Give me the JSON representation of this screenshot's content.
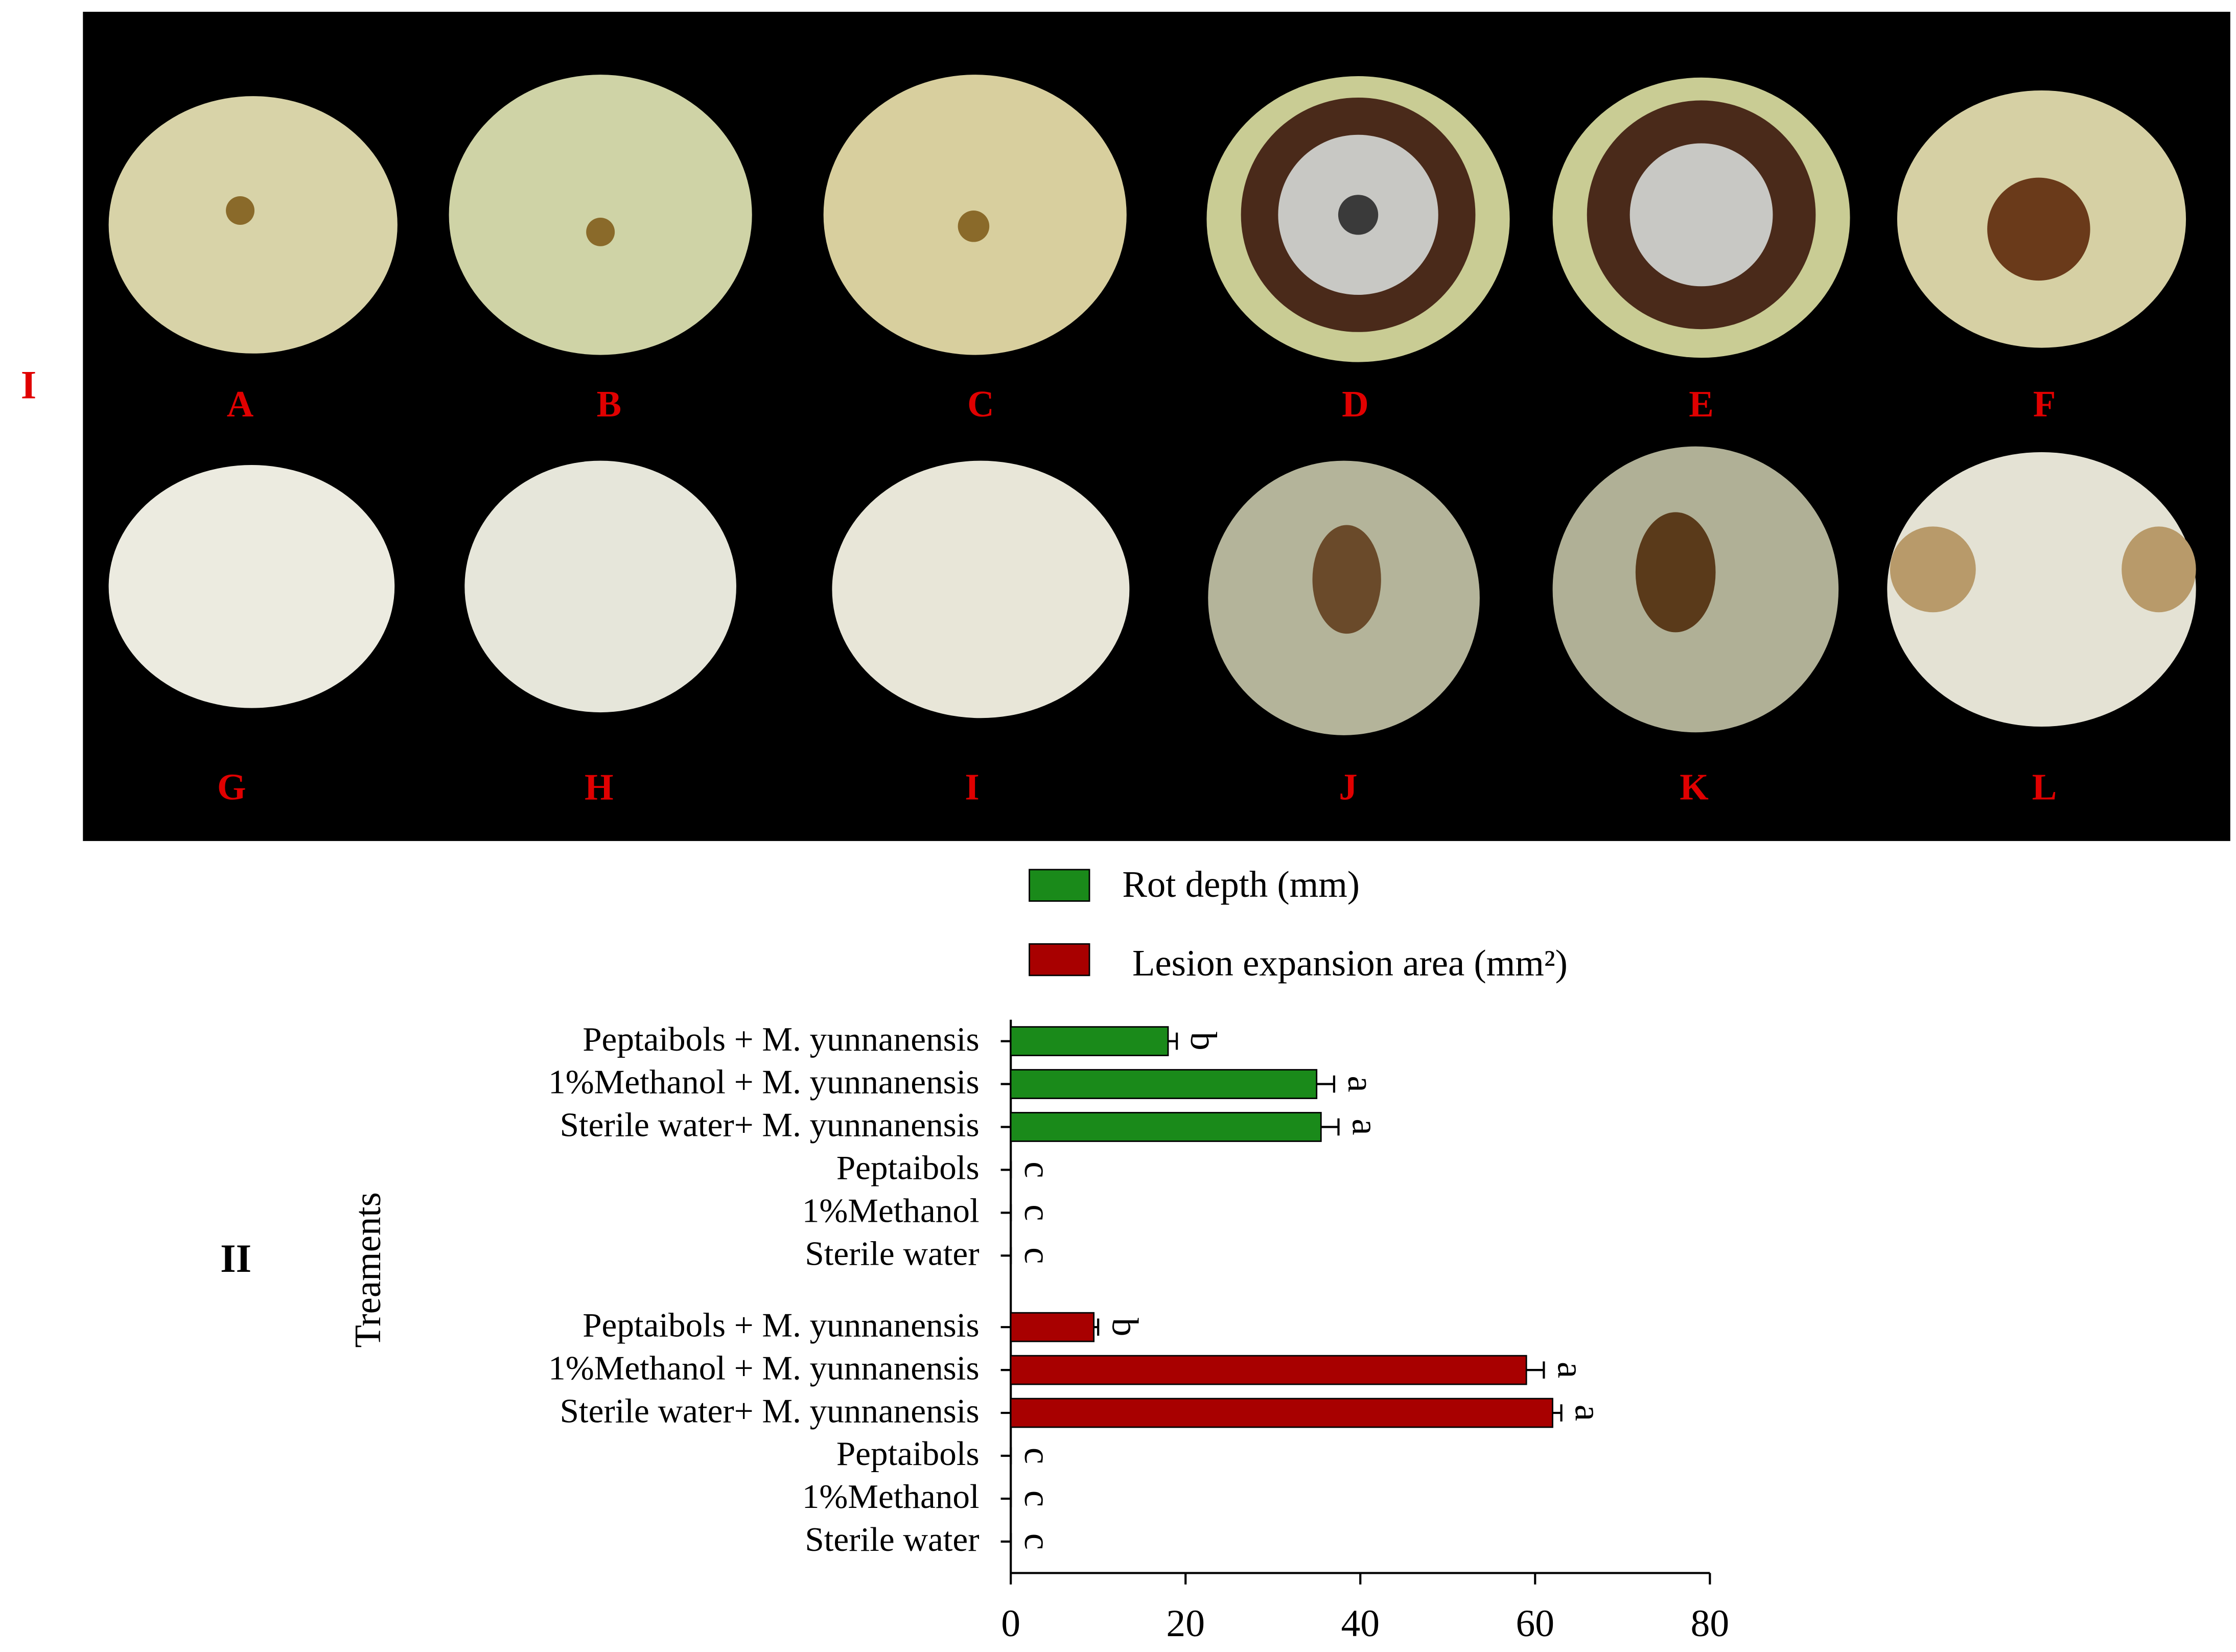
{
  "panels": [
    "I",
    "II"
  ],
  "photo_labels": [
    "A",
    "B",
    "C",
    "D",
    "E",
    "F",
    "G",
    "H",
    "I",
    "J",
    "K",
    "L"
  ],
  "chart_data": {
    "type": "hbar",
    "y_label": "Treaments",
    "categories": [
      "Peptaibols + M. yunnanensis",
      "1%Methanol + M. yunnanensis",
      "Sterile water+ M. yunnanensis",
      "Peptaibols",
      "1%Methanol",
      "Sterile water",
      "Peptaibols + M. yunnanensis",
      "1%Methanol + M. yunnanensis",
      "Sterile water+ M. yunnanensis",
      "Peptaibols",
      "1%Methanol",
      "Sterile water"
    ],
    "series": [
      {
        "name": "Rot depth (mm)",
        "color": "#1a8a1a",
        "values": [
          18,
          35,
          35.5,
          0,
          0,
          0,
          null,
          null,
          null,
          null,
          null,
          null
        ],
        "errors": [
          1,
          2,
          2,
          0,
          0,
          0,
          null,
          null,
          null,
          null,
          null,
          null
        ],
        "letters": [
          "b",
          "a",
          "a",
          "c",
          "c",
          "c",
          null,
          null,
          null,
          null,
          null,
          null
        ]
      },
      {
        "name": "Lesion expansion area (mm²)",
        "color": "#a80000",
        "values": [
          null,
          null,
          null,
          null,
          null,
          null,
          9.5,
          59,
          62,
          0,
          0,
          0
        ],
        "errors": [
          null,
          null,
          null,
          null,
          null,
          null,
          0.5,
          2,
          1,
          0,
          0,
          0
        ],
        "letters": [
          null,
          null,
          null,
          null,
          null,
          null,
          "b",
          "a",
          "a",
          "c",
          "c",
          "c"
        ]
      }
    ],
    "xlim": [
      0,
      80
    ],
    "xticks": [
      0,
      20,
      40,
      60,
      80
    ]
  }
}
